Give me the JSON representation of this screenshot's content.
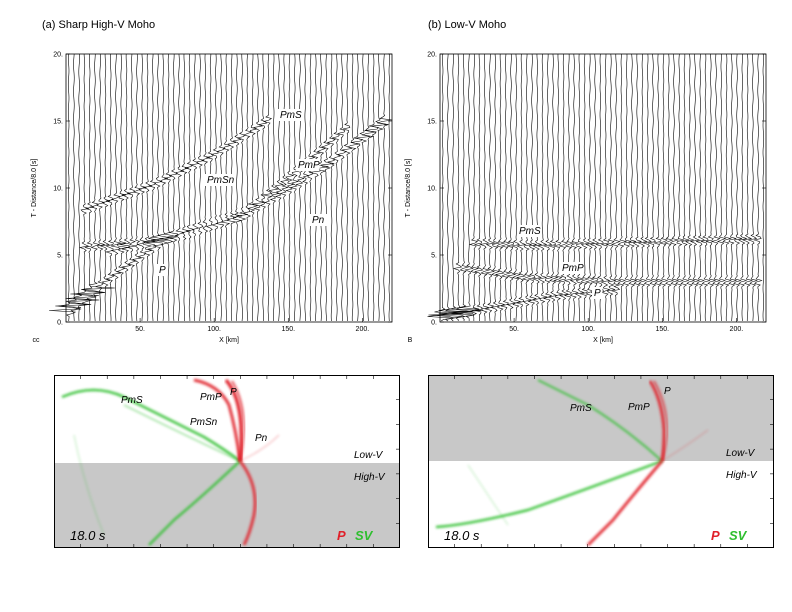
{
  "panels": [
    {
      "title": "(a) Sharp High-V Moho",
      "ylabel": "T - Distance/8.0 [s]",
      "xlabel": "X [km]",
      "side_label": "cc",
      "xticks": [
        "50.",
        "100.",
        "150.",
        "200."
      ],
      "yticks": [
        "0.",
        "5.",
        "10.",
        "15.",
        "20."
      ],
      "phase_labels": [
        "PmS",
        "PmP",
        "PmSn",
        "Pn",
        "P"
      ],
      "snapshot": {
        "labels": [
          "PmS",
          "PmP",
          "P",
          "PmSn",
          "Pn"
        ],
        "upper_layer": "Low-V",
        "lower_layer": "High-V",
        "time": "18.0 s",
        "legend_p": "P",
        "legend_sv": "SV",
        "upper_shade": "#ffffff",
        "lower_shade": "#c8c8c8"
      }
    },
    {
      "title": "(b) Low-V Moho",
      "ylabel": "T - Distance/8.0 [s]",
      "xlabel": "X [km]",
      "side_label": "B",
      "xticks": [
        "50.",
        "100.",
        "150.",
        "200."
      ],
      "yticks": [
        "0.",
        "5.",
        "10.",
        "15.",
        "20."
      ],
      "phase_labels": [
        "PmS",
        "PmP",
        "P"
      ],
      "snapshot": {
        "labels": [
          "PmS",
          "PmP",
          "P"
        ],
        "upper_layer": "Low-V",
        "lower_layer": "High-V",
        "time": "18.0 s",
        "legend_p": "P",
        "legend_sv": "SV",
        "upper_shade": "#c8c8c8",
        "lower_shade": "#ffffff"
      }
    }
  ],
  "colors": {
    "p_wave": "#e0202a",
    "sv_wave": "#2fbf2f"
  },
  "chart_data": [
    {
      "type": "line",
      "title": "(a) Sharp High-V Moho",
      "xlabel": "X [km]",
      "ylabel": "T - Distance/8.0 [s]",
      "xlim": [
        0,
        220
      ],
      "ylim": [
        0,
        20
      ],
      "traces": 62,
      "series": [
        {
          "name": "P",
          "x": [
            0,
            20,
            45,
            65
          ],
          "y": [
            0.8,
            2.5,
            4.5,
            6.0
          ]
        },
        {
          "name": "PmP",
          "x": [
            10,
            60,
            120,
            160,
            215
          ],
          "y": [
            5.6,
            6.0,
            8.0,
            10.5,
            15.0
          ]
        },
        {
          "name": "PmS",
          "x": [
            10,
            60,
            100,
            140
          ],
          "y": [
            8.3,
            10.3,
            12.5,
            15.3
          ]
        },
        {
          "name": "PmSn",
          "x": [
            30,
            80,
            120,
            190
          ],
          "y": [
            5.3,
            6.5,
            8.0,
            14.5
          ]
        },
        {
          "name": "Pn",
          "x": [
            60,
            120,
            180,
            215
          ],
          "y": [
            6.0,
            8.2,
            12.0,
            15.0
          ]
        }
      ]
    },
    {
      "type": "line",
      "title": "(b) Low-V Moho",
      "xlabel": "X [km]",
      "ylabel": "T - Distance/8.0 [s]",
      "xlim": [
        0,
        220
      ],
      "ylim": [
        0,
        20
      ],
      "traces": 62,
      "series": [
        {
          "name": "P",
          "x": [
            0,
            30,
            80,
            120
          ],
          "y": [
            0.5,
            1.0,
            2.0,
            2.4
          ]
        },
        {
          "name": "PmP",
          "x": [
            10,
            60,
            120,
            215
          ],
          "y": [
            4.1,
            3.3,
            3.0,
            3.0
          ]
        },
        {
          "name": "PmS",
          "x": [
            20,
            60,
            120,
            215
          ],
          "y": [
            5.9,
            5.7,
            5.9,
            6.2
          ]
        }
      ]
    }
  ]
}
